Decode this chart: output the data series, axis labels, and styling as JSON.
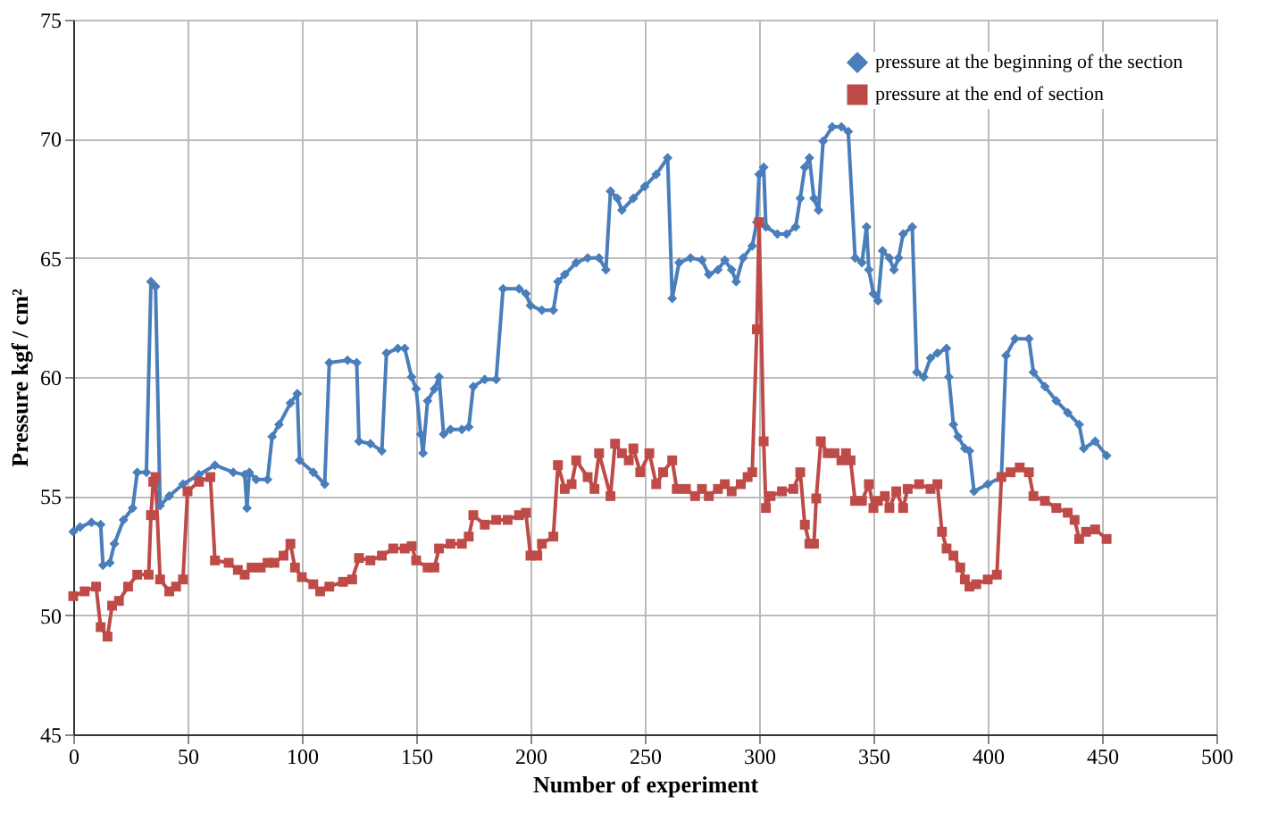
{
  "chart_data": {
    "type": "line",
    "xlabel": "Number of experiment",
    "ylabel": "Pressure kgf / cm²",
    "xlim": [
      0,
      500
    ],
    "xticks": [
      0,
      50,
      100,
      150,
      200,
      250,
      300,
      350,
      400,
      450,
      500
    ],
    "ylim": [
      45,
      75
    ],
    "yticks": [
      45,
      50,
      55,
      60,
      65,
      70,
      75
    ],
    "grid": true,
    "legend": "top right",
    "line_style": "solid",
    "series": [
      {
        "name": "pressure at the beginning of the section",
        "color": "#4a7ebb",
        "marker": "diamond",
        "x": [
          0,
          3,
          8,
          12,
          13,
          16,
          18,
          22,
          26,
          28,
          32,
          34,
          36,
          38,
          42,
          48,
          55,
          62,
          70,
          75,
          76,
          77,
          80,
          85,
          87,
          90,
          95,
          98,
          99,
          105,
          110,
          112,
          120,
          124,
          125,
          130,
          135,
          137,
          142,
          145,
          148,
          150,
          152,
          153,
          155,
          158,
          160,
          162,
          165,
          170,
          173,
          175,
          180,
          185,
          188,
          195,
          198,
          200,
          205,
          210,
          212,
          215,
          220,
          225,
          230,
          233,
          235,
          238,
          240,
          245,
          250,
          255,
          260,
          262,
          265,
          270,
          275,
          278,
          282,
          285,
          288,
          290,
          293,
          297,
          299,
          300,
          302,
          303,
          308,
          312,
          316,
          318,
          320,
          322,
          324,
          326,
          328,
          332,
          336,
          339,
          342,
          345,
          347,
          348,
          350,
          352,
          354,
          357,
          359,
          361,
          363,
          367,
          369,
          372,
          375,
          378,
          382,
          383,
          385,
          387,
          390,
          392,
          394,
          400,
          406,
          408,
          412,
          418,
          420,
          425,
          430,
          435,
          440,
          442,
          447,
          452
        ],
        "values": [
          53.5,
          53.7,
          53.9,
          53.8,
          52.1,
          52.2,
          53.0,
          54.0,
          54.5,
          56.0,
          56.0,
          64.0,
          63.8,
          54.6,
          55.0,
          55.5,
          55.9,
          56.3,
          56.0,
          55.9,
          54.5,
          56.0,
          55.7,
          55.7,
          57.5,
          58.0,
          58.9,
          59.3,
          56.5,
          56.0,
          55.5,
          60.6,
          60.7,
          60.6,
          57.3,
          57.2,
          56.9,
          61.0,
          61.2,
          61.2,
          60.0,
          59.5,
          57.6,
          56.8,
          59.0,
          59.5,
          60.0,
          57.6,
          57.8,
          57.8,
          57.9,
          59.6,
          59.9,
          59.9,
          63.7,
          63.7,
          63.5,
          63.0,
          62.8,
          62.8,
          64.0,
          64.3,
          64.8,
          65.0,
          65.0,
          64.5,
          67.8,
          67.5,
          67.0,
          67.5,
          68.0,
          68.5,
          69.2,
          63.3,
          64.8,
          65.0,
          64.9,
          64.3,
          64.5,
          64.9,
          64.5,
          64.0,
          65.0,
          65.5,
          66.5,
          68.5,
          68.8,
          66.3,
          66.0,
          66.0,
          66.3,
          67.5,
          68.8,
          69.2,
          67.5,
          67.0,
          69.9,
          70.5,
          70.5,
          70.3,
          65.0,
          64.8,
          66.3,
          64.5,
          63.5,
          63.2,
          65.3,
          65.0,
          64.5,
          65.0,
          66.0,
          66.3,
          60.2,
          60.0,
          60.8,
          61.0,
          61.2,
          60.0,
          58.0,
          57.5,
          57.0,
          56.9,
          55.2,
          55.5,
          55.8,
          60.9,
          61.6,
          61.6,
          60.2,
          59.6,
          59.0,
          58.5,
          58.0,
          57.0,
          57.3,
          56.7
        ]
      },
      {
        "name": "pressure at the end of section",
        "color": "#be4b48",
        "marker": "square",
        "x": [
          0,
          5,
          10,
          12,
          15,
          17,
          20,
          24,
          28,
          33,
          34,
          35,
          36,
          38,
          42,
          45,
          48,
          50,
          55,
          60,
          62,
          68,
          72,
          75,
          78,
          82,
          85,
          88,
          92,
          95,
          97,
          100,
          105,
          108,
          112,
          118,
          122,
          125,
          130,
          135,
          140,
          145,
          148,
          150,
          155,
          158,
          160,
          165,
          170,
          173,
          175,
          180,
          185,
          190,
          195,
          198,
          200,
          203,
          205,
          210,
          212,
          215,
          218,
          220,
          225,
          228,
          230,
          235,
          237,
          240,
          243,
          245,
          248,
          252,
          255,
          258,
          262,
          264,
          268,
          272,
          275,
          278,
          282,
          285,
          288,
          292,
          295,
          297,
          299,
          300,
          302,
          303,
          305,
          310,
          315,
          318,
          320,
          322,
          324,
          325,
          327,
          330,
          333,
          336,
          338,
          340,
          342,
          345,
          348,
          350,
          352,
          355,
          357,
          360,
          363,
          365,
          370,
          375,
          378,
          380,
          382,
          385,
          388,
          390,
          392,
          395,
          400,
          404,
          406,
          410,
          414,
          418,
          420,
          425,
          430,
          435,
          438,
          440,
          443,
          447,
          452
        ],
        "values": [
          50.8,
          51.0,
          51.2,
          49.5,
          49.1,
          50.4,
          50.6,
          51.2,
          51.7,
          51.7,
          54.2,
          55.6,
          55.8,
          51.5,
          51.0,
          51.2,
          51.5,
          55.2,
          55.6,
          55.8,
          52.3,
          52.2,
          51.9,
          51.7,
          52.0,
          52.0,
          52.2,
          52.2,
          52.5,
          53.0,
          52.0,
          51.6,
          51.3,
          51.0,
          51.2,
          51.4,
          51.5,
          52.4,
          52.3,
          52.5,
          52.8,
          52.8,
          52.9,
          52.3,
          52.0,
          52.0,
          52.8,
          53.0,
          53.0,
          53.3,
          54.2,
          53.8,
          54.0,
          54.0,
          54.2,
          54.3,
          52.5,
          52.5,
          53.0,
          53.3,
          56.3,
          55.3,
          55.5,
          56.5,
          55.8,
          55.3,
          56.8,
          55.0,
          57.2,
          56.8,
          56.5,
          57.0,
          56.0,
          56.8,
          55.5,
          56.0,
          56.5,
          55.3,
          55.3,
          55.0,
          55.3,
          55.0,
          55.3,
          55.5,
          55.2,
          55.5,
          55.8,
          56.0,
          62.0,
          66.5,
          57.3,
          54.5,
          55.0,
          55.2,
          55.3,
          56.0,
          53.8,
          53.0,
          53.0,
          54.9,
          57.3,
          56.8,
          56.8,
          56.5,
          56.8,
          56.5,
          54.8,
          54.8,
          55.5,
          54.5,
          54.8,
          55.0,
          54.5,
          55.2,
          54.5,
          55.3,
          55.5,
          55.3,
          55.5,
          53.5,
          52.8,
          52.5,
          52.0,
          51.5,
          51.2,
          51.3,
          51.5,
          51.7,
          55.8,
          56.0,
          56.2,
          56.0,
          55.0,
          54.8,
          54.5,
          54.3,
          54.0,
          53.2,
          53.5,
          53.6,
          53.2
        ]
      }
    ]
  }
}
